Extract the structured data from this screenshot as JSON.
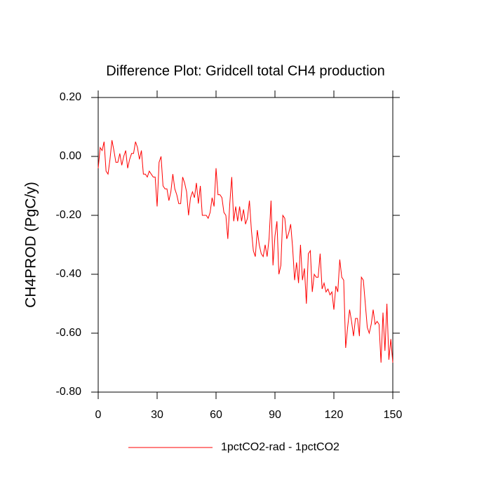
{
  "chart_data": {
    "type": "line",
    "title": "Difference Plot: Gridcell total CH4 production",
    "y_label": "CH4PROD  (PgC/y)",
    "x": [
      0,
      1,
      2,
      3,
      4,
      5,
      6,
      7,
      8,
      9,
      10,
      11,
      12,
      13,
      14,
      15,
      16,
      17,
      18,
      19,
      20,
      21,
      22,
      23,
      24,
      25,
      26,
      27,
      28,
      29,
      30,
      31,
      32,
      33,
      34,
      35,
      36,
      37,
      38,
      39,
      40,
      41,
      42,
      43,
      44,
      45,
      46,
      47,
      48,
      49,
      50,
      51,
      52,
      53,
      54,
      55,
      56,
      57,
      58,
      59,
      60,
      61,
      62,
      63,
      64,
      65,
      66,
      67,
      68,
      69,
      70,
      71,
      72,
      73,
      74,
      75,
      76,
      77,
      78,
      79,
      80,
      81,
      82,
      83,
      84,
      85,
      86,
      87,
      88,
      89,
      90,
      91,
      92,
      93,
      94,
      95,
      96,
      97,
      98,
      99,
      100,
      101,
      102,
      103,
      104,
      105,
      106,
      107,
      108,
      109,
      110,
      111,
      112,
      113,
      114,
      115,
      116,
      117,
      118,
      119,
      120,
      121,
      122,
      123,
      124,
      125,
      126,
      127,
      128,
      129,
      130,
      131,
      132,
      133,
      134,
      135,
      136,
      137,
      138,
      139,
      140,
      141,
      142,
      143,
      144,
      145,
      146,
      147,
      148,
      149,
      150
    ],
    "series": [
      {
        "name": "1pctCO2-rad - 1pctCO2",
        "color": "#ff0000",
        "values": [
          -0.04,
          0.03,
          0.02,
          0.05,
          -0.05,
          -0.06,
          -0.01,
          0.055,
          0.02,
          -0.02,
          -0.02,
          0.01,
          -0.03,
          0.0,
          0.02,
          -0.04,
          -0.01,
          0.01,
          0.01,
          0.05,
          0.03,
          -0.01,
          0.02,
          -0.06,
          -0.06,
          -0.07,
          -0.05,
          -0.06,
          -0.07,
          -0.07,
          -0.17,
          -0.02,
          0.0,
          -0.1,
          -0.11,
          -0.11,
          -0.15,
          -0.12,
          -0.06,
          -0.11,
          -0.13,
          -0.16,
          -0.16,
          -0.07,
          -0.09,
          -0.12,
          -0.2,
          -0.14,
          -0.12,
          -0.14,
          -0.09,
          -0.16,
          -0.1,
          -0.2,
          -0.2,
          -0.2,
          -0.21,
          -0.19,
          -0.14,
          -0.17,
          -0.04,
          -0.13,
          -0.13,
          -0.14,
          -0.19,
          -0.2,
          -0.28,
          -0.16,
          -0.07,
          -0.22,
          -0.17,
          -0.22,
          -0.17,
          -0.22,
          -0.18,
          -0.23,
          -0.21,
          -0.15,
          -0.25,
          -0.32,
          -0.34,
          -0.25,
          -0.3,
          -0.33,
          -0.34,
          -0.3,
          -0.34,
          -0.28,
          -0.15,
          -0.37,
          -0.27,
          -0.22,
          -0.4,
          -0.37,
          -0.2,
          -0.21,
          -0.28,
          -0.26,
          -0.23,
          -0.31,
          -0.42,
          -0.36,
          -0.43,
          -0.3,
          -0.42,
          -0.38,
          -0.5,
          -0.33,
          -0.32,
          -0.46,
          -0.4,
          -0.41,
          -0.41,
          -0.33,
          -0.45,
          -0.43,
          -0.46,
          -0.45,
          -0.47,
          -0.46,
          -0.52,
          -0.44,
          -0.46,
          -0.35,
          -0.41,
          -0.42,
          -0.65,
          -0.58,
          -0.52,
          -0.56,
          -0.61,
          -0.55,
          -0.55,
          -0.61,
          -0.41,
          -0.42,
          -0.5,
          -0.58,
          -0.6,
          -0.57,
          -0.52,
          -0.57,
          -0.56,
          -0.57,
          -0.7,
          -0.53,
          -0.66,
          -0.5,
          -0.69,
          -0.62,
          -0.7
        ]
      }
    ],
    "xlim": [
      0,
      150
    ],
    "xticks": [
      0,
      30,
      60,
      90,
      120,
      150
    ],
    "ylim": [
      -0.8,
      0.2
    ],
    "yticks": [
      {
        "value": -0.8,
        "label": "-0.80"
      },
      {
        "value": -0.6,
        "label": "-0.60"
      },
      {
        "value": -0.4,
        "label": "-0.40"
      },
      {
        "value": -0.2,
        "label": "-0.20"
      },
      {
        "value": 0,
        "label": "0.00"
      },
      {
        "value": 0.2,
        "label": "0.20"
      }
    ],
    "legend": "bottom"
  }
}
